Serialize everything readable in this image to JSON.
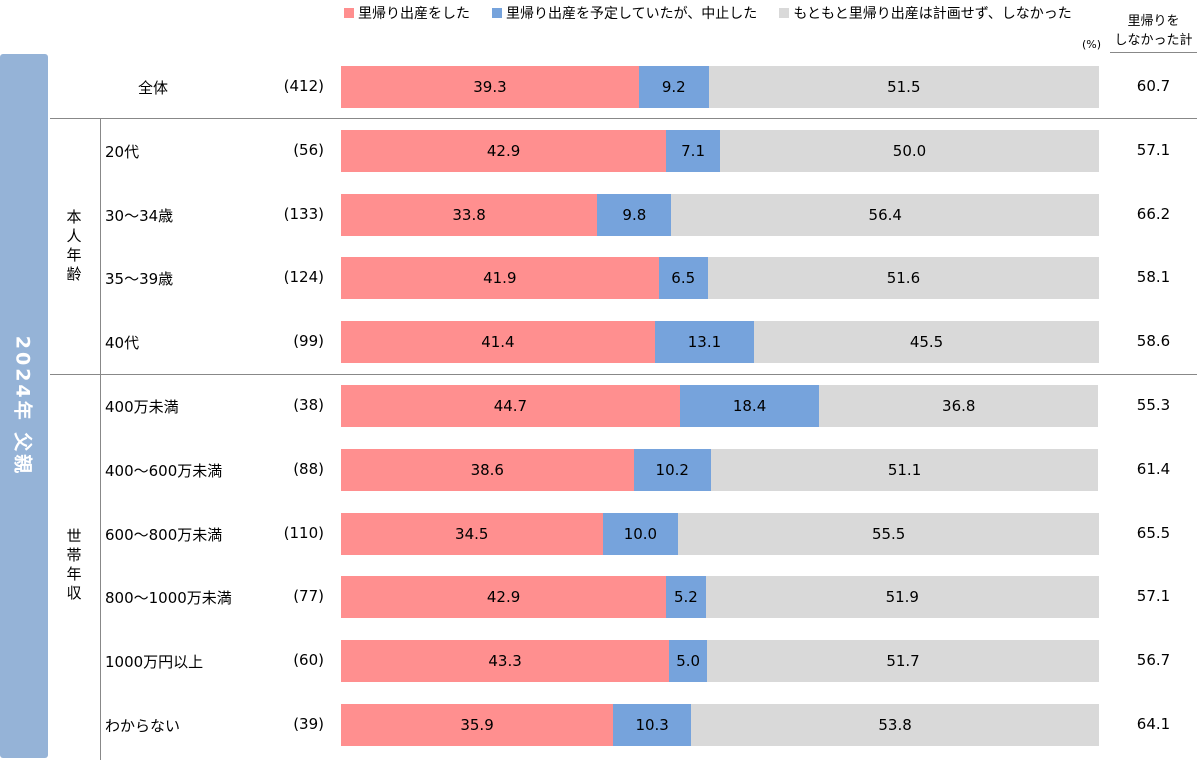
{
  "side_label": "2024年 父親",
  "colors": {
    "did": "#ff8f8f",
    "cancelled": "#76a3dc",
    "none": "#d9d9d9",
    "side": "#95b3d7"
  },
  "chart_data": {
    "type": "bar",
    "stacked": true,
    "orientation": "horizontal",
    "unit": "(%)",
    "xlim": [
      0,
      100
    ],
    "legend_position": "top",
    "series_names": [
      "里帰り出産をした",
      "里帰り出産を予定していたが、中止した",
      "もともと里帰り出産は計画せず、しなかった"
    ],
    "total_header": "里帰りをしなかった計",
    "total_header_lines": [
      "里帰りを",
      "しなかった計"
    ],
    "groups": [
      {
        "name": "本人年齢"
      },
      {
        "name": "世帯年収"
      }
    ],
    "rows": [
      {
        "label": "全体",
        "n": "(412)",
        "values": [
          39.3,
          9.2,
          51.5
        ],
        "total": 60.7
      },
      {
        "label": "20代",
        "n": "(56)",
        "values": [
          42.9,
          7.1,
          50.0
        ],
        "total": 57.1,
        "group": 0
      },
      {
        "label": "30～34歳",
        "n": "(133)",
        "values": [
          33.8,
          9.8,
          56.4
        ],
        "total": 66.2,
        "group": 0
      },
      {
        "label": "35～39歳",
        "n": "(124)",
        "values": [
          41.9,
          6.5,
          51.6
        ],
        "total": 58.1,
        "group": 0
      },
      {
        "label": "40代",
        "n": "(99)",
        "values": [
          41.4,
          13.1,
          45.5
        ],
        "total": 58.6,
        "group": 0
      },
      {
        "label": "400万未満",
        "n": "(38)",
        "values": [
          44.7,
          18.4,
          36.8
        ],
        "total": 55.3,
        "group": 1
      },
      {
        "label": "400～600万未満",
        "n": "(88)",
        "values": [
          38.6,
          10.2,
          51.1
        ],
        "total": 61.4,
        "group": 1
      },
      {
        "label": "600～800万未満",
        "n": "(110)",
        "values": [
          34.5,
          10.0,
          55.5
        ],
        "total": 65.5,
        "group": 1
      },
      {
        "label": "800～1000万未満",
        "n": "(77)",
        "values": [
          42.9,
          5.2,
          51.9
        ],
        "total": 57.1,
        "group": 1
      },
      {
        "label": "1000万円以上",
        "n": "(60)",
        "values": [
          43.3,
          5.0,
          51.7
        ],
        "total": 56.7,
        "group": 1
      },
      {
        "label": "わからない",
        "n": "(39)",
        "values": [
          35.9,
          10.3,
          53.8
        ],
        "total": 64.1,
        "group": 1
      }
    ]
  }
}
